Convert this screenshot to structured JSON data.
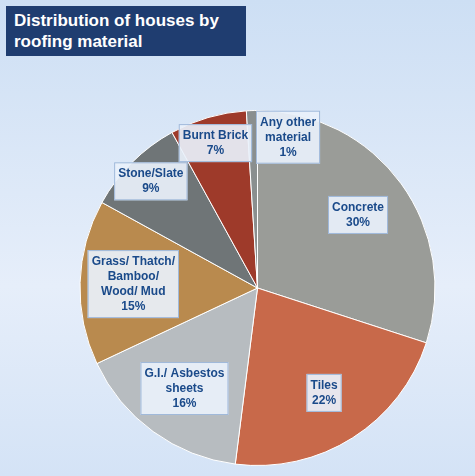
{
  "chart_data": {
    "type": "pie",
    "title": "Distribution of houses by roofing material",
    "categories": [
      "Concrete",
      "Tiles",
      "G.I./ Asbestos sheets",
      "Grass/ Thatch/ Bamboo/ Wood/ Mud",
      "Stone/Slate",
      "Burnt Brick",
      "Any other material"
    ],
    "values": [
      30,
      22,
      16,
      15,
      9,
      7,
      1
    ],
    "value_labels": [
      "30%",
      "22%",
      "16%",
      "15%",
      "9%",
      "7%",
      "1%"
    ],
    "colors": [
      "#9a9c98",
      "#c8694a",
      "#b7bcc0",
      "#b98a4e",
      "#6f7577",
      "#9e3a2a",
      "#8a8f8f"
    ],
    "data_labels": true
  }
}
